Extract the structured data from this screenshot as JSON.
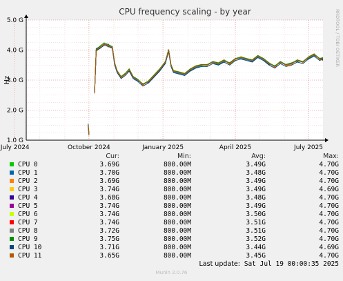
{
  "chart_data": {
    "type": "line",
    "title": "CPU frequency scaling - by year",
    "ylabel": "Hz",
    "y_ticks": [
      "1.0 G",
      "2.0 G",
      "3.0 G",
      "4.0 G",
      "5.0 G"
    ],
    "y_tick_values": [
      1.0,
      2.0,
      3.0,
      4.0,
      5.0
    ],
    "ylim": [
      1.0,
      5.0
    ],
    "x_ticks": [
      "July 2024",
      "October 2024",
      "January 2025",
      "April 2025",
      "July 2025"
    ],
    "x_tick_values": [
      "2024-07-01",
      "2024-10-01",
      "2025-01-01",
      "2025-04-01",
      "2025-07-01"
    ],
    "xlim": [
      "2024-07-15",
      "2025-07-19"
    ],
    "grid": true,
    "watermark": "RRDTOOL / TOBI OETIKER",
    "x": [
      "2024-09-28",
      "2024-09-30",
      "2024-10-01",
      "2024-10-05",
      "2024-10-08",
      "2024-10-10",
      "2024-10-15",
      "2024-10-20",
      "2024-10-25",
      "2024-10-30",
      "2024-11-02",
      "2024-11-05",
      "2024-11-10",
      "2024-11-15",
      "2024-11-20",
      "2024-11-25",
      "2024-12-01",
      "2024-12-07",
      "2024-12-14",
      "2024-12-21",
      "2024-12-28",
      "2025-01-04",
      "2025-01-08",
      "2025-01-11",
      "2025-01-14",
      "2025-01-21",
      "2025-01-28",
      "2025-02-04",
      "2025-02-11",
      "2025-02-18",
      "2025-02-25",
      "2025-03-04",
      "2025-03-11",
      "2025-03-18",
      "2025-03-25",
      "2025-04-01",
      "2025-04-08",
      "2025-04-15",
      "2025-04-22",
      "2025-04-29",
      "2025-05-06",
      "2025-05-13",
      "2025-05-20",
      "2025-05-27",
      "2025-06-03",
      "2025-06-10",
      "2025-06-17",
      "2025-06-24",
      "2025-07-01",
      "2025-07-08",
      "2025-07-15",
      "2025-07-19"
    ],
    "series": [
      {
        "name": "CPU 0",
        "color": "#00cc00",
        "values": [
          null,
          1.5,
          1.2,
          null,
          2.6,
          4.0,
          4.1,
          4.2,
          4.15,
          4.1,
          3.55,
          3.3,
          3.1,
          3.2,
          3.35,
          3.1,
          3.0,
          2.85,
          2.95,
          3.15,
          3.35,
          3.6,
          4.0,
          3.5,
          3.3,
          3.25,
          3.2,
          3.35,
          3.45,
          3.5,
          3.5,
          3.6,
          3.55,
          3.65,
          3.55,
          3.7,
          3.75,
          3.7,
          3.65,
          3.8,
          3.7,
          3.55,
          3.45,
          3.6,
          3.5,
          3.55,
          3.65,
          3.6,
          3.75,
          3.85,
          3.7,
          3.69
        ]
      },
      {
        "name": "CPU 1",
        "color": "#0066b3",
        "values": [
          null,
          1.55,
          1.25,
          null,
          2.65,
          4.05,
          4.12,
          4.18,
          4.2,
          4.05,
          3.5,
          3.28,
          3.12,
          3.22,
          3.3,
          3.08,
          2.98,
          2.88,
          2.92,
          3.12,
          3.32,
          3.58,
          4.02,
          3.48,
          3.28,
          3.22,
          3.18,
          3.32,
          3.42,
          3.48,
          3.52,
          3.58,
          3.52,
          3.62,
          3.58,
          3.72,
          3.72,
          3.68,
          3.62,
          3.78,
          3.68,
          3.52,
          3.48,
          3.58,
          3.52,
          3.58,
          3.62,
          3.62,
          3.72,
          3.82,
          3.72,
          3.7
        ]
      },
      {
        "name": "CPU 2",
        "color": "#ff8000",
        "values": [
          null,
          1.45,
          1.15,
          null,
          2.55,
          3.95,
          4.08,
          4.22,
          4.1,
          4.12,
          3.58,
          3.32,
          3.08,
          3.18,
          3.38,
          3.12,
          3.02,
          2.82,
          2.98,
          3.18,
          3.38,
          3.62,
          3.98,
          3.52,
          3.32,
          3.28,
          3.22,
          3.38,
          3.48,
          3.52,
          3.48,
          3.62,
          3.58,
          3.68,
          3.52,
          3.68,
          3.78,
          3.72,
          3.68,
          3.82,
          3.72,
          3.58,
          3.42,
          3.62,
          3.48,
          3.52,
          3.68,
          3.58,
          3.78,
          3.88,
          3.68,
          3.69
        ]
      },
      {
        "name": "CPU 3",
        "color": "#ffcc00",
        "values": [
          null,
          1.5,
          1.2,
          null,
          2.6,
          4.0,
          4.1,
          4.2,
          4.15,
          4.1,
          3.55,
          3.3,
          3.1,
          3.2,
          3.35,
          3.1,
          3.0,
          2.85,
          2.95,
          3.15,
          3.35,
          3.6,
          4.0,
          3.5,
          3.3,
          3.25,
          3.2,
          3.35,
          3.45,
          3.5,
          3.5,
          3.6,
          3.55,
          3.65,
          3.55,
          3.7,
          3.75,
          3.7,
          3.65,
          3.8,
          3.7,
          3.55,
          3.45,
          3.6,
          3.5,
          3.55,
          3.65,
          3.6,
          3.75,
          3.85,
          3.7,
          3.74
        ]
      },
      {
        "name": "CPU 4",
        "color": "#330099",
        "values": [
          null,
          1.5,
          1.2,
          null,
          2.6,
          4.0,
          4.1,
          4.2,
          4.15,
          4.1,
          3.55,
          3.3,
          3.1,
          3.2,
          3.35,
          3.1,
          3.0,
          2.85,
          2.95,
          3.15,
          3.35,
          3.6,
          4.0,
          3.5,
          3.3,
          3.25,
          3.2,
          3.35,
          3.45,
          3.5,
          3.5,
          3.6,
          3.55,
          3.65,
          3.55,
          3.7,
          3.75,
          3.7,
          3.65,
          3.8,
          3.7,
          3.55,
          3.45,
          3.6,
          3.5,
          3.55,
          3.65,
          3.6,
          3.75,
          3.85,
          3.7,
          3.68
        ]
      },
      {
        "name": "CPU 5",
        "color": "#990099",
        "values": [
          null,
          1.5,
          1.2,
          null,
          2.6,
          4.0,
          4.1,
          4.2,
          4.15,
          4.1,
          3.55,
          3.3,
          3.1,
          3.2,
          3.35,
          3.1,
          3.0,
          2.85,
          2.95,
          3.15,
          3.35,
          3.6,
          4.0,
          3.5,
          3.3,
          3.25,
          3.2,
          3.35,
          3.45,
          3.5,
          3.5,
          3.6,
          3.55,
          3.65,
          3.55,
          3.7,
          3.75,
          3.7,
          3.65,
          3.8,
          3.7,
          3.55,
          3.45,
          3.6,
          3.5,
          3.55,
          3.65,
          3.6,
          3.75,
          3.85,
          3.7,
          3.74
        ]
      },
      {
        "name": "CPU 6",
        "color": "#ccff00",
        "values": [
          null,
          1.5,
          1.2,
          null,
          2.6,
          4.0,
          4.1,
          4.2,
          4.15,
          4.1,
          3.55,
          3.3,
          3.1,
          3.2,
          3.35,
          3.1,
          3.0,
          2.85,
          2.95,
          3.15,
          3.35,
          3.6,
          4.0,
          3.5,
          3.3,
          3.25,
          3.2,
          3.35,
          3.45,
          3.5,
          3.5,
          3.6,
          3.55,
          3.65,
          3.55,
          3.7,
          3.75,
          3.7,
          3.65,
          3.8,
          3.7,
          3.55,
          3.45,
          3.6,
          3.5,
          3.55,
          3.65,
          3.6,
          3.75,
          3.85,
          3.7,
          3.74
        ]
      },
      {
        "name": "CPU 7",
        "color": "#ff0000",
        "values": [
          null,
          1.5,
          1.2,
          null,
          2.6,
          4.0,
          4.1,
          4.2,
          4.15,
          4.1,
          3.55,
          3.3,
          3.1,
          3.2,
          3.35,
          3.1,
          3.0,
          2.85,
          2.95,
          3.15,
          3.35,
          3.6,
          4.0,
          3.5,
          3.3,
          3.25,
          3.2,
          3.35,
          3.45,
          3.5,
          3.5,
          3.6,
          3.55,
          3.65,
          3.55,
          3.7,
          3.75,
          3.7,
          3.65,
          3.8,
          3.7,
          3.55,
          3.45,
          3.6,
          3.5,
          3.55,
          3.65,
          3.6,
          3.75,
          3.85,
          3.7,
          3.74
        ]
      },
      {
        "name": "CPU 8",
        "color": "#808080",
        "values": [
          null,
          1.5,
          1.2,
          null,
          2.6,
          4.0,
          4.1,
          4.2,
          4.15,
          4.1,
          3.55,
          3.3,
          3.1,
          3.2,
          3.35,
          3.1,
          3.0,
          2.85,
          2.95,
          3.15,
          3.35,
          3.6,
          4.0,
          3.5,
          3.3,
          3.25,
          3.2,
          3.35,
          3.45,
          3.5,
          3.5,
          3.6,
          3.55,
          3.65,
          3.55,
          3.7,
          3.75,
          3.7,
          3.65,
          3.8,
          3.7,
          3.55,
          3.45,
          3.6,
          3.5,
          3.55,
          3.65,
          3.6,
          3.75,
          3.85,
          3.7,
          3.72
        ]
      },
      {
        "name": "CPU 9",
        "color": "#008f00",
        "values": [
          null,
          1.52,
          1.22,
          null,
          2.62,
          4.02,
          4.14,
          4.24,
          4.18,
          4.12,
          3.57,
          3.32,
          3.12,
          3.22,
          3.37,
          3.12,
          3.02,
          2.87,
          2.97,
          3.17,
          3.37,
          3.62,
          4.02,
          3.52,
          3.32,
          3.27,
          3.22,
          3.37,
          3.47,
          3.52,
          3.52,
          3.62,
          3.57,
          3.67,
          3.57,
          3.72,
          3.77,
          3.72,
          3.67,
          3.82,
          3.72,
          3.57,
          3.47,
          3.62,
          3.52,
          3.57,
          3.67,
          3.62,
          3.77,
          3.87,
          3.72,
          3.75
        ]
      },
      {
        "name": "CPU 10",
        "color": "#00487d",
        "values": [
          null,
          1.48,
          1.18,
          null,
          2.58,
          3.98,
          4.06,
          4.16,
          4.12,
          4.06,
          3.5,
          3.25,
          3.05,
          3.15,
          3.3,
          3.05,
          2.95,
          2.8,
          2.9,
          3.1,
          3.3,
          3.55,
          3.95,
          3.45,
          3.25,
          3.2,
          3.15,
          3.3,
          3.4,
          3.45,
          3.45,
          3.55,
          3.5,
          3.6,
          3.5,
          3.65,
          3.7,
          3.65,
          3.6,
          3.75,
          3.65,
          3.5,
          3.4,
          3.55,
          3.45,
          3.5,
          3.6,
          3.55,
          3.7,
          3.8,
          3.65,
          3.71
        ]
      },
      {
        "name": "CPU 11",
        "color": "#b35a00",
        "values": [
          null,
          1.5,
          1.2,
          null,
          2.6,
          4.0,
          4.1,
          4.2,
          4.15,
          4.1,
          3.55,
          3.3,
          3.1,
          3.2,
          3.35,
          3.1,
          3.0,
          2.85,
          2.95,
          3.15,
          3.35,
          3.6,
          4.0,
          3.5,
          3.3,
          3.25,
          3.2,
          3.35,
          3.45,
          3.5,
          3.5,
          3.6,
          3.55,
          3.65,
          3.55,
          3.7,
          3.75,
          3.7,
          3.65,
          3.8,
          3.7,
          3.55,
          3.45,
          3.6,
          3.5,
          3.55,
          3.65,
          3.6,
          3.75,
          3.85,
          3.7,
          3.65
        ]
      }
    ]
  },
  "legend": {
    "headers": {
      "cur": "Cur:",
      "min": "Min:",
      "avg": "Avg:",
      "max": "Max:"
    },
    "rows": [
      {
        "name": "CPU 0",
        "color": "#00cc00",
        "cur": "3.69G",
        "min": "800.00M",
        "avg": "3.49G",
        "max": "4.70G"
      },
      {
        "name": "CPU 1",
        "color": "#0066b3",
        "cur": "3.70G",
        "min": "800.00M",
        "avg": "3.48G",
        "max": "4.70G"
      },
      {
        "name": "CPU 2",
        "color": "#ff8000",
        "cur": "3.69G",
        "min": "800.00M",
        "avg": "3.49G",
        "max": "4.70G"
      },
      {
        "name": "CPU 3",
        "color": "#ffcc00",
        "cur": "3.74G",
        "min": "800.00M",
        "avg": "3.49G",
        "max": "4.69G"
      },
      {
        "name": "CPU 4",
        "color": "#330099",
        "cur": "3.68G",
        "min": "800.00M",
        "avg": "3.48G",
        "max": "4.70G"
      },
      {
        "name": "CPU 5",
        "color": "#990099",
        "cur": "3.74G",
        "min": "800.00M",
        "avg": "3.49G",
        "max": "4.70G"
      },
      {
        "name": "CPU 6",
        "color": "#ccff00",
        "cur": "3.74G",
        "min": "800.00M",
        "avg": "3.50G",
        "max": "4.70G"
      },
      {
        "name": "CPU 7",
        "color": "#ff0000",
        "cur": "3.74G",
        "min": "800.00M",
        "avg": "3.51G",
        "max": "4.70G"
      },
      {
        "name": "CPU 8",
        "color": "#808080",
        "cur": "3.72G",
        "min": "800.00M",
        "avg": "3.51G",
        "max": "4.70G"
      },
      {
        "name": "CPU 9",
        "color": "#008f00",
        "cur": "3.75G",
        "min": "800.00M",
        "avg": "3.52G",
        "max": "4.70G"
      },
      {
        "name": "CPU 10",
        "color": "#00487d",
        "cur": "3.71G",
        "min": "800.00M",
        "avg": "3.44G",
        "max": "4.69G"
      },
      {
        "name": "CPU 11",
        "color": "#b35a00",
        "cur": "3.65G",
        "min": "800.00M",
        "avg": "3.45G",
        "max": "4.70G"
      }
    ]
  },
  "last_update": {
    "label": "Last update:",
    "value": "Sat Jul 19 00:00:35 2025"
  },
  "footer": "Munin 2.0.76"
}
